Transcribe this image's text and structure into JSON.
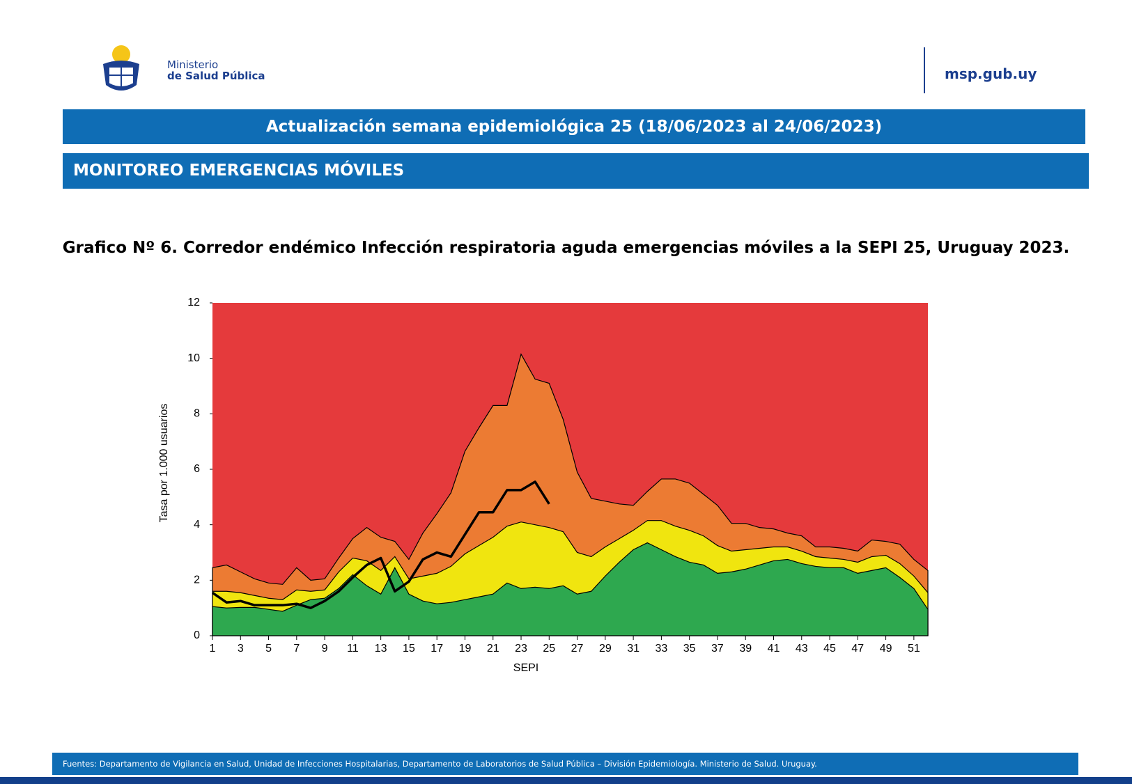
{
  "header": {
    "ministry_line1": "Ministerio",
    "ministry_line2": "de Salud Pública",
    "website": "msp.gub.uy"
  },
  "banner": "Actualización semana epidemiológica 25 (18/06/2023 al 24/06/2023)",
  "section": "MONITOREO EMERGENCIAS MÓVILES",
  "chart_data": {
    "type": "area",
    "title": "Grafico Nº 6. Corredor endémico Infección respiratoria aguda emergencias móviles a la SEPI 25, Uruguay 2023.",
    "x_label": "SEPI",
    "y_label": "Tasa  por 1.000 usuarios",
    "background_color": "#e53a3c",
    "x": [
      1,
      2,
      3,
      4,
      5,
      6,
      7,
      8,
      9,
      10,
      11,
      12,
      13,
      14,
      15,
      16,
      17,
      18,
      19,
      20,
      21,
      22,
      23,
      24,
      25,
      26,
      27,
      28,
      29,
      30,
      31,
      32,
      33,
      34,
      35,
      36,
      37,
      38,
      39,
      40,
      41,
      42,
      43,
      44,
      45,
      46,
      47,
      48,
      49,
      50,
      51,
      52
    ],
    "xlim": [
      1,
      52
    ],
    "xticks": [
      1,
      3,
      5,
      7,
      9,
      11,
      13,
      15,
      17,
      19,
      21,
      23,
      25,
      27,
      29,
      31,
      33,
      35,
      37,
      39,
      41,
      43,
      45,
      47,
      49,
      51
    ],
    "ylim": [
      0,
      12
    ],
    "yticks": [
      0,
      2,
      4,
      6,
      8,
      10,
      12
    ],
    "series": [
      {
        "type": "area",
        "color": "#ec7b33",
        "values": [
          2.45,
          2.55,
          2.3,
          2.05,
          1.9,
          1.85,
          2.45,
          2.0,
          2.05,
          2.8,
          3.5,
          3.9,
          3.55,
          3.4,
          2.75,
          3.7,
          4.4,
          5.15,
          6.65,
          7.5,
          8.3,
          8.3,
          10.15,
          9.25,
          9.1,
          7.8,
          5.9,
          4.95,
          4.85,
          4.75,
          4.7,
          5.2,
          5.65,
          5.65,
          5.5,
          5.1,
          4.7,
          4.05,
          4.05,
          3.9,
          3.85,
          3.7,
          3.6,
          3.2,
          3.2,
          3.15,
          3.05,
          3.45,
          3.4,
          3.3,
          2.75,
          2.35
        ]
      },
      {
        "type": "area",
        "color": "#f0e50f",
        "values": [
          1.6,
          1.6,
          1.55,
          1.45,
          1.35,
          1.3,
          1.65,
          1.6,
          1.65,
          2.3,
          2.8,
          2.7,
          2.35,
          2.85,
          2.05,
          2.15,
          2.25,
          2.5,
          2.95,
          3.25,
          3.55,
          3.95,
          4.1,
          4.0,
          3.9,
          3.75,
          3.0,
          2.85,
          3.2,
          3.5,
          3.8,
          4.15,
          4.15,
          3.95,
          3.8,
          3.6,
          3.25,
          3.05,
          3.1,
          3.15,
          3.2,
          3.2,
          3.05,
          2.85,
          2.8,
          2.75,
          2.65,
          2.85,
          2.9,
          2.6,
          2.15,
          1.55
        ]
      },
      {
        "type": "area",
        "color": "#2ea84f",
        "values": [
          1.05,
          1.0,
          1.02,
          1.02,
          0.95,
          0.88,
          1.1,
          1.3,
          1.35,
          1.7,
          2.2,
          1.8,
          1.5,
          2.45,
          1.5,
          1.25,
          1.15,
          1.2,
          1.3,
          1.4,
          1.5,
          1.9,
          1.7,
          1.75,
          1.7,
          1.8,
          1.5,
          1.6,
          2.15,
          2.65,
          3.1,
          3.35,
          3.1,
          2.85,
          2.65,
          2.55,
          2.25,
          2.3,
          2.4,
          2.55,
          2.7,
          2.75,
          2.6,
          2.5,
          2.45,
          2.45,
          2.25,
          2.35,
          2.45,
          2.1,
          1.7,
          0.95
        ]
      },
      {
        "type": "line",
        "color": "#000000",
        "values": [
          1.55,
          1.2,
          1.25,
          1.1,
          1.1,
          1.1,
          1.15,
          1.0,
          1.25,
          1.6,
          2.1,
          2.55,
          2.8,
          1.6,
          1.95,
          2.75,
          3.0,
          2.85,
          3.65,
          4.45,
          4.45,
          5.25,
          5.25,
          5.55,
          4.75,
          null,
          null,
          null,
          null,
          null,
          null,
          null,
          null,
          null,
          null,
          null,
          null,
          null,
          null,
          null,
          null,
          null,
          null,
          null,
          null,
          null,
          null,
          null,
          null,
          null,
          null,
          null
        ]
      }
    ]
  },
  "footer": "Fuentes: Departamento de Vigilancia en Salud, Unidad de Infecciones Hospitalarias, Departamento de Laboratorios de Salud Pública – División Epidemiología. Ministerio de Salud. Uruguay."
}
